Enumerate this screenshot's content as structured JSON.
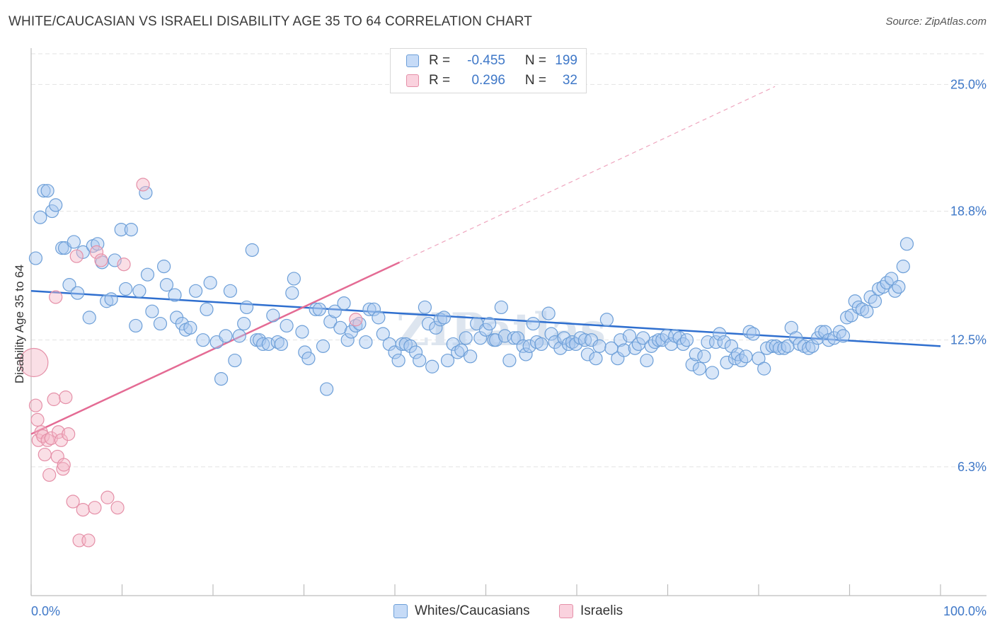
{
  "header": {
    "title": "WHITE/CAUCASIAN VS ISRAELI DISABILITY AGE 35 TO 64 CORRELATION CHART",
    "source": "Source: ZipAtlas.com"
  },
  "legend": {
    "rows": [
      {
        "r_label": "R =",
        "r_value": "-0.455",
        "n_label": "N =",
        "n_value": "199",
        "color": "#a8c8f0"
      },
      {
        "r_label": "R =",
        "r_value": "0.296",
        "n_label": "N =",
        "n_value": "32",
        "color": "#f4b8c8"
      }
    ]
  },
  "bottom_legend": {
    "items": [
      {
        "label": "Whites/Caucasians",
        "color": "#a8c8f0"
      },
      {
        "label": "Israelis",
        "color": "#f4b8c8"
      }
    ]
  },
  "watermark": "ZIPatlas",
  "chart_data": {
    "type": "scatter",
    "title": "WHITE/CAUCASIAN VS ISRAELI DISABILITY AGE 35 TO 64 CORRELATION CHART",
    "xlabel": "",
    "ylabel": "Disability Age 35 to 64",
    "xlim": [
      0,
      100
    ],
    "ylim": [
      0,
      26.5
    ],
    "y_ticks": [
      {
        "value": 25.0,
        "label": "25.0%"
      },
      {
        "value": 18.8,
        "label": "18.8%"
      },
      {
        "value": 12.5,
        "label": "12.5%"
      },
      {
        "value": 6.3,
        "label": "6.3%"
      }
    ],
    "x_tick_labels": {
      "min": "0.0%",
      "max": "100.0%"
    },
    "grid": true,
    "series": [
      {
        "name": "Whites/Caucasians",
        "color": "#a8c8f0",
        "stroke": "#6d9fd8",
        "trend": {
          "x": [
            0,
            100
          ],
          "y": [
            14.9,
            12.2
          ],
          "color": "#2f6fcf"
        },
        "points": [
          [
            0.5,
            16.5
          ],
          [
            1.0,
            18.5
          ],
          [
            1.4,
            19.8
          ],
          [
            1.8,
            19.8
          ],
          [
            2.3,
            18.8
          ],
          [
            2.7,
            19.1
          ],
          [
            3.4,
            17.0
          ],
          [
            3.7,
            17.0
          ],
          [
            4.2,
            15.2
          ],
          [
            4.7,
            17.3
          ],
          [
            5.1,
            14.8
          ],
          [
            5.7,
            16.8
          ],
          [
            6.4,
            13.6
          ],
          [
            6.8,
            17.1
          ],
          [
            7.3,
            17.2
          ],
          [
            7.8,
            16.3
          ],
          [
            8.3,
            14.4
          ],
          [
            8.8,
            14.5
          ],
          [
            9.2,
            16.4
          ],
          [
            9.9,
            17.9
          ],
          [
            10.4,
            15.0
          ],
          [
            11.0,
            17.9
          ],
          [
            11.5,
            13.2
          ],
          [
            11.9,
            14.9
          ],
          [
            12.6,
            19.7
          ],
          [
            12.8,
            15.7
          ],
          [
            13.3,
            13.9
          ],
          [
            14.2,
            13.3
          ],
          [
            14.6,
            16.1
          ],
          [
            14.9,
            15.2
          ],
          [
            15.8,
            14.7
          ],
          [
            16.0,
            13.6
          ],
          [
            16.6,
            13.3
          ],
          [
            17.0,
            13.0
          ],
          [
            17.5,
            13.1
          ],
          [
            18.1,
            14.9
          ],
          [
            18.9,
            12.5
          ],
          [
            19.3,
            14.0
          ],
          [
            19.7,
            15.3
          ],
          [
            20.4,
            12.4
          ],
          [
            20.9,
            10.6
          ],
          [
            21.4,
            12.7
          ],
          [
            21.9,
            14.9
          ],
          [
            22.4,
            11.5
          ],
          [
            22.9,
            12.7
          ],
          [
            23.4,
            13.3
          ],
          [
            23.7,
            14.1
          ],
          [
            24.3,
            16.9
          ],
          [
            24.8,
            12.5
          ],
          [
            25.1,
            12.5
          ],
          [
            25.5,
            12.3
          ],
          [
            26.1,
            12.3
          ],
          [
            26.6,
            13.7
          ],
          [
            27.1,
            12.4
          ],
          [
            27.5,
            12.3
          ],
          [
            28.1,
            13.2
          ],
          [
            28.7,
            14.8
          ],
          [
            28.9,
            15.5
          ],
          [
            29.8,
            12.9
          ],
          [
            30.1,
            11.9
          ],
          [
            30.5,
            11.6
          ],
          [
            31.3,
            14.0
          ],
          [
            31.7,
            14.0
          ],
          [
            32.1,
            12.2
          ],
          [
            32.5,
            10.1
          ],
          [
            32.9,
            13.4
          ],
          [
            33.4,
            13.9
          ],
          [
            34.0,
            13.1
          ],
          [
            34.4,
            14.3
          ],
          [
            34.8,
            12.5
          ],
          [
            35.2,
            12.9
          ],
          [
            35.7,
            13.2
          ],
          [
            36.1,
            13.3
          ],
          [
            36.8,
            12.4
          ],
          [
            37.2,
            14.0
          ],
          [
            37.7,
            14.0
          ],
          [
            38.2,
            13.6
          ],
          [
            38.7,
            12.8
          ],
          [
            39.4,
            12.3
          ],
          [
            40.0,
            11.9
          ],
          [
            40.4,
            11.5
          ],
          [
            40.8,
            12.3
          ],
          [
            41.2,
            12.3
          ],
          [
            41.7,
            12.2
          ],
          [
            42.3,
            11.9
          ],
          [
            42.7,
            11.5
          ],
          [
            43.3,
            14.1
          ],
          [
            43.7,
            13.3
          ],
          [
            44.1,
            11.2
          ],
          [
            44.5,
            13.1
          ],
          [
            45.0,
            13.5
          ],
          [
            45.4,
            13.6
          ],
          [
            45.8,
            11.5
          ],
          [
            46.4,
            12.3
          ],
          [
            46.9,
            11.9
          ],
          [
            47.3,
            12.0
          ],
          [
            47.8,
            12.6
          ],
          [
            48.3,
            11.7
          ],
          [
            49.0,
            13.3
          ],
          [
            49.4,
            12.6
          ],
          [
            50.0,
            13.0
          ],
          [
            50.4,
            13.3
          ],
          [
            50.9,
            12.5
          ],
          [
            51.1,
            12.5
          ],
          [
            51.7,
            14.1
          ],
          [
            52.1,
            12.7
          ],
          [
            52.6,
            11.5
          ],
          [
            53.1,
            12.6
          ],
          [
            53.5,
            12.6
          ],
          [
            54.1,
            12.2
          ],
          [
            54.4,
            11.8
          ],
          [
            54.8,
            12.2
          ],
          [
            55.2,
            13.3
          ],
          [
            55.6,
            12.4
          ],
          [
            56.1,
            12.3
          ],
          [
            56.9,
            13.8
          ],
          [
            57.2,
            12.8
          ],
          [
            57.6,
            12.4
          ],
          [
            58.2,
            12.1
          ],
          [
            58.6,
            12.6
          ],
          [
            59.1,
            12.3
          ],
          [
            59.5,
            12.4
          ],
          [
            59.9,
            12.3
          ],
          [
            60.4,
            12.6
          ],
          [
            60.9,
            12.5
          ],
          [
            61.2,
            11.8
          ],
          [
            61.6,
            12.5
          ],
          [
            62.1,
            11.6
          ],
          [
            62.5,
            12.2
          ],
          [
            63.3,
            13.5
          ],
          [
            63.8,
            12.1
          ],
          [
            64.5,
            11.6
          ],
          [
            64.8,
            12.5
          ],
          [
            65.2,
            12.0
          ],
          [
            65.8,
            12.7
          ],
          [
            66.4,
            12.1
          ],
          [
            66.8,
            12.3
          ],
          [
            67.3,
            12.6
          ],
          [
            67.7,
            11.5
          ],
          [
            68.2,
            12.2
          ],
          [
            68.6,
            12.4
          ],
          [
            69.0,
            12.5
          ],
          [
            69.4,
            12.5
          ],
          [
            69.9,
            12.7
          ],
          [
            70.4,
            12.3
          ],
          [
            70.8,
            12.7
          ],
          [
            71.3,
            12.6
          ],
          [
            71.7,
            12.3
          ],
          [
            72.1,
            12.5
          ],
          [
            72.7,
            11.3
          ],
          [
            73.1,
            11.8
          ],
          [
            73.5,
            11.1
          ],
          [
            74.0,
            11.7
          ],
          [
            74.4,
            12.4
          ],
          [
            74.9,
            10.9
          ],
          [
            75.3,
            12.4
          ],
          [
            75.7,
            12.8
          ],
          [
            76.2,
            12.4
          ],
          [
            76.5,
            11.4
          ],
          [
            77.0,
            12.2
          ],
          [
            77.4,
            11.6
          ],
          [
            77.7,
            11.8
          ],
          [
            78.1,
            11.5
          ],
          [
            78.6,
            11.7
          ],
          [
            79.0,
            12.9
          ],
          [
            79.4,
            12.8
          ],
          [
            80.0,
            11.6
          ],
          [
            80.6,
            11.1
          ],
          [
            80.9,
            12.1
          ],
          [
            81.5,
            12.2
          ],
          [
            81.9,
            12.2
          ],
          [
            82.3,
            12.1
          ],
          [
            82.8,
            12.1
          ],
          [
            83.2,
            12.2
          ],
          [
            83.6,
            13.1
          ],
          [
            84.1,
            12.6
          ],
          [
            84.5,
            12.3
          ],
          [
            85.0,
            12.2
          ],
          [
            85.5,
            12.1
          ],
          [
            85.9,
            12.2
          ],
          [
            86.5,
            12.6
          ],
          [
            86.9,
            12.9
          ],
          [
            87.3,
            12.9
          ],
          [
            87.7,
            12.5
          ],
          [
            88.3,
            12.6
          ],
          [
            88.9,
            12.9
          ],
          [
            89.3,
            12.7
          ],
          [
            89.7,
            13.6
          ],
          [
            90.2,
            13.7
          ],
          [
            90.6,
            14.4
          ],
          [
            91.0,
            14.1
          ],
          [
            91.4,
            14.0
          ],
          [
            91.9,
            13.9
          ],
          [
            92.3,
            14.6
          ],
          [
            92.8,
            14.4
          ],
          [
            93.2,
            15.0
          ],
          [
            93.7,
            15.1
          ],
          [
            94.1,
            15.3
          ],
          [
            94.6,
            15.5
          ],
          [
            95.0,
            14.9
          ],
          [
            95.4,
            15.1
          ],
          [
            95.9,
            16.1
          ],
          [
            96.3,
            17.2
          ]
        ]
      },
      {
        "name": "Israelis",
        "color": "#f4b8c8",
        "stroke": "#e590a8",
        "trend": {
          "x": [
            0,
            40.5
          ],
          "y": [
            7.9,
            16.3
          ],
          "extended_to": [
            81.8,
            24.9
          ],
          "color": "#e46b94"
        },
        "points": [
          [
            0.3,
            11.4
          ],
          [
            0.5,
            9.3
          ],
          [
            0.7,
            8.6
          ],
          [
            0.8,
            7.6
          ],
          [
            1.1,
            8.0
          ],
          [
            1.3,
            7.8
          ],
          [
            1.5,
            6.9
          ],
          [
            1.8,
            7.6
          ],
          [
            2.0,
            5.9
          ],
          [
            2.2,
            7.7
          ],
          [
            2.5,
            9.6
          ],
          [
            2.7,
            14.6
          ],
          [
            2.9,
            6.8
          ],
          [
            3.0,
            8.0
          ],
          [
            3.3,
            7.6
          ],
          [
            3.5,
            6.2
          ],
          [
            3.6,
            6.4
          ],
          [
            3.8,
            9.7
          ],
          [
            4.1,
            7.9
          ],
          [
            4.6,
            4.6
          ],
          [
            5.0,
            16.6
          ],
          [
            5.3,
            2.7
          ],
          [
            5.7,
            4.2
          ],
          [
            6.3,
            2.7
          ],
          [
            7.0,
            4.3
          ],
          [
            7.2,
            16.8
          ],
          [
            7.7,
            16.4
          ],
          [
            8.4,
            4.8
          ],
          [
            9.5,
            4.3
          ],
          [
            10.2,
            16.2
          ],
          [
            12.3,
            20.1
          ],
          [
            35.7,
            13.5
          ]
        ]
      }
    ]
  }
}
